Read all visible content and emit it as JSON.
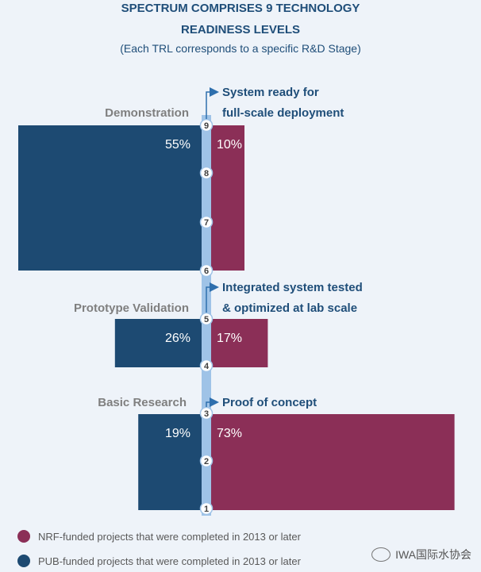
{
  "title_line1": "SPECTRUM COMPRISES 9 TECHNOLOGY",
  "title_line2": "READINESS LEVELS",
  "subtitle": "(Each TRL corresponds to a specific R&D Stage)",
  "colors": {
    "nrf": "#8b2f57",
    "pub": "#1d4a72",
    "axis": "#9fc3e7",
    "stage_label": "#7f7f7f",
    "annotation": "#1f4e79"
  },
  "chart_data": {
    "type": "bar",
    "orientation": "horizontal-diverging",
    "axis_ticks": [
      "1",
      "2",
      "3",
      "4",
      "5",
      "6",
      "7",
      "8",
      "9"
    ],
    "categories": [
      "Demonstration",
      "Prototype Validation",
      "Basic Research"
    ],
    "category_trl_ranges": [
      [
        6,
        9
      ],
      [
        4,
        5
      ],
      [
        1,
        3
      ]
    ],
    "series": [
      {
        "name": "PUB-funded projects that were completed in 2013 or later",
        "values": [
          55,
          26,
          19
        ],
        "labels": [
          "55%",
          "26%",
          "19%"
        ]
      },
      {
        "name": "NRF-funded projects that were completed in 2013 or later",
        "values": [
          10,
          17,
          73
        ],
        "labels": [
          "10%",
          "17%",
          "73%"
        ]
      }
    ],
    "annotations": [
      {
        "trl": 9,
        "line1": "System ready for",
        "line2": "full-scale deployment"
      },
      {
        "trl": 5,
        "line1": "Integrated system tested",
        "line2": "& optimized at lab scale"
      },
      {
        "trl": 3,
        "line1": "Proof of concept",
        "line2": ""
      }
    ],
    "legend": [
      {
        "label": "NRF-funded projects that were completed in 2013 or later",
        "series": 1
      },
      {
        "label": "PUB-funded projects that were completed in 2013 or later",
        "series": 0
      }
    ],
    "legend_position": "bottom-left"
  },
  "watermark": "IWA国际水协会"
}
